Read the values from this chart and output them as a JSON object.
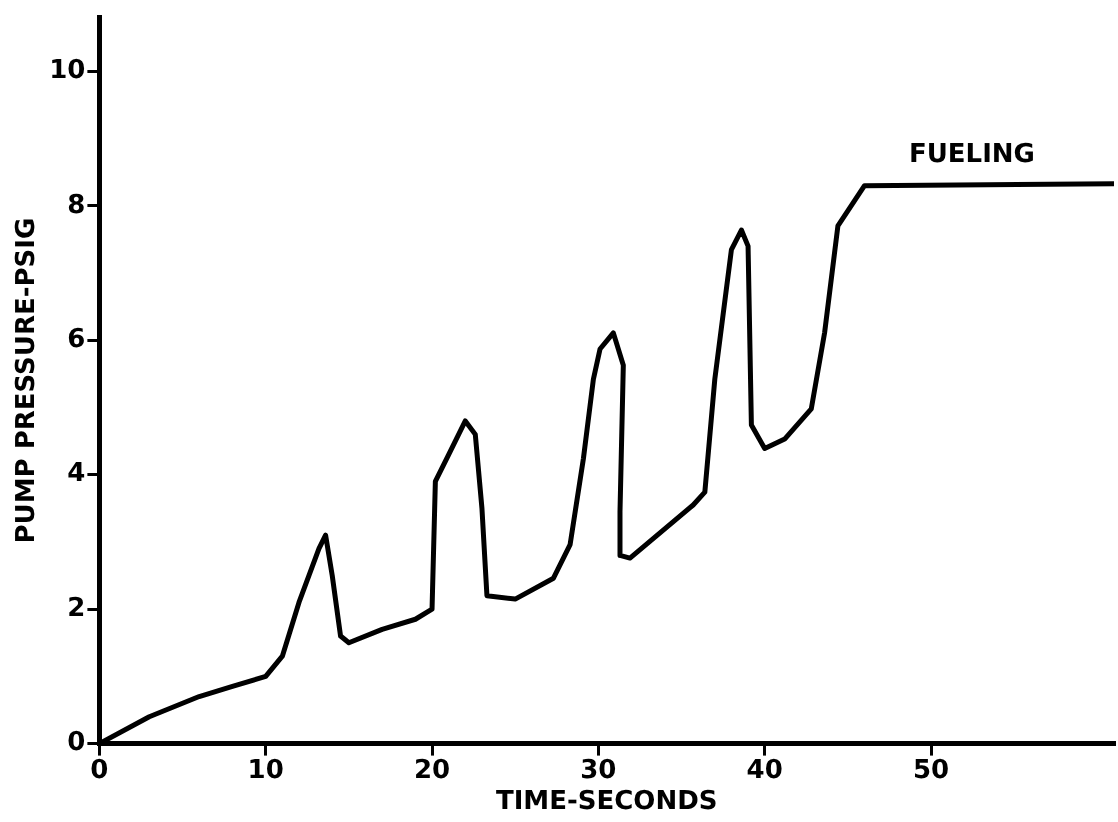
{
  "chart_data": {
    "type": "line",
    "xlabel": "TIME-SECONDS",
    "ylabel": "PUMP PRESSURE-PSIG",
    "annotations": [
      "FUELING"
    ],
    "xlim": [
      0,
      61
    ],
    "ylim": [
      0,
      10.8
    ],
    "xticks": [
      0,
      10,
      20,
      30,
      40,
      50
    ],
    "yticks": [
      0,
      2,
      4,
      6,
      8,
      10
    ],
    "grid": false,
    "legend": false,
    "marker": "none",
    "line_style": "solid",
    "series": [
      {
        "color": "#000000",
        "x": [
          0,
          3,
          6,
          8,
          10,
          11,
          12,
          13.2,
          13.6,
          14,
          14.5,
          15,
          17,
          19,
          20,
          20.2,
          21,
          22,
          22.6,
          23,
          23.3,
          25,
          27.3,
          28.3,
          29.1,
          29.7,
          30.1,
          30.9,
          31.5,
          31.3,
          31.3,
          31.9,
          35.7,
          36.4,
          37,
          38,
          38.6,
          39,
          39.2,
          40,
          41.2,
          42.8,
          43.6,
          44.4,
          46,
          61
        ],
        "values": [
          0,
          0.4,
          0.7,
          0.85,
          1.0,
          1.3,
          2.1,
          2.9,
          3.1,
          2.5,
          1.6,
          1.5,
          1.7,
          1.85,
          2.0,
          3.9,
          4.3,
          4.8,
          4.6,
          3.5,
          2.2,
          2.15,
          2.46,
          2.96,
          4.24,
          5.42,
          5.87,
          6.11,
          5.63,
          3.45,
          2.8,
          2.76,
          3.55,
          3.74,
          5.42,
          7.35,
          7.64,
          7.4,
          4.74,
          4.39,
          4.53,
          4.98,
          6.11,
          7.7,
          8.3,
          8.33
        ]
      }
    ]
  }
}
